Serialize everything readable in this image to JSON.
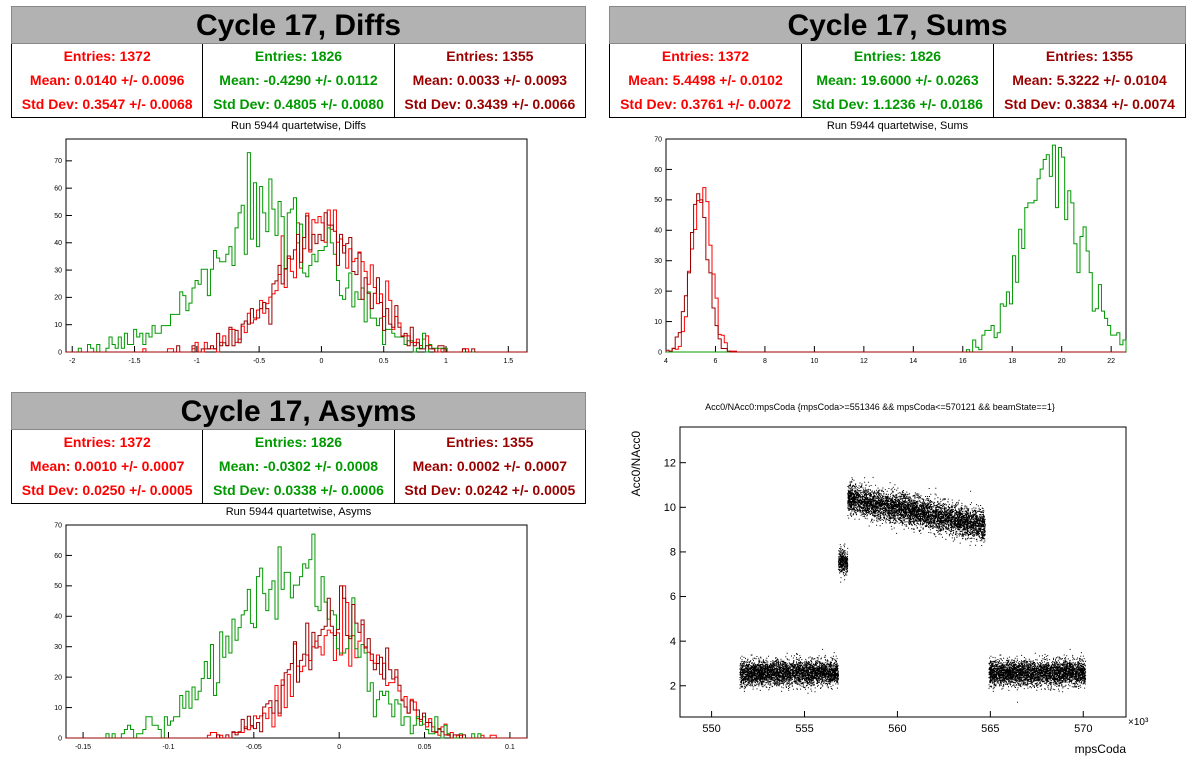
{
  "colors": {
    "red": "#ff0000",
    "green": "#009900",
    "darkred": "#990000",
    "title_bg": "#b2b2b2"
  },
  "panels": {
    "diffs": {
      "title": "Cycle 17, Diffs",
      "subtitle": "Run 5944 quartetwise, Diffs",
      "stats": [
        {
          "entries": "Entries: 1372",
          "mean": "Mean: 0.0140 +/- 0.0096",
          "std": "Std Dev: 0.3547 +/- 0.0068"
        },
        {
          "entries": "Entries: 1826",
          "mean": "Mean: -0.4290 +/- 0.0112",
          "std": "Std Dev: 0.4805 +/- 0.0080"
        },
        {
          "entries": "Entries: 1355",
          "mean": "Mean: 0.0033 +/- 0.0093",
          "std": "Std Dev: 0.3439 +/- 0.0066"
        }
      ]
    },
    "sums": {
      "title": "Cycle 17, Sums",
      "subtitle": "Run 5944 quartetwise, Sums",
      "stats": [
        {
          "entries": "Entries: 1372",
          "mean": "Mean: 5.4498 +/- 0.0102",
          "std": "Std Dev: 0.3761 +/- 0.0072"
        },
        {
          "entries": "Entries: 1826",
          "mean": "Mean: 19.6000 +/- 0.0263",
          "std": "Std Dev: 1.1236 +/- 0.0186"
        },
        {
          "entries": "Entries: 1355",
          "mean": "Mean: 5.3222 +/- 0.0104",
          "std": "Std Dev: 0.3834 +/- 0.0074"
        }
      ]
    },
    "asyms": {
      "title": "Cycle 17, Asyms",
      "subtitle": "Run 5944 quartetwise, Asyms",
      "stats": [
        {
          "entries": "Entries: 1372",
          "mean": "Mean: 0.0010 +/- 0.0007",
          "std": "Std Dev: 0.0250 +/- 0.0005"
        },
        {
          "entries": "Entries: 1826",
          "mean": "Mean: -0.0302 +/- 0.0008",
          "std": "Std Dev: 0.0338 +/- 0.0006"
        },
        {
          "entries": "Entries: 1355",
          "mean": "Mean: 0.0002 +/- 0.0007",
          "std": "Std Dev: 0.0242 +/- 0.0005"
        }
      ]
    },
    "scatter": {
      "title": "Acc0/NAcc0:mpsCoda {mpsCoda>=551346 && mpsCoda<=570121 && beamState==1}"
    }
  },
  "chart_data": [
    {
      "type": "histogram",
      "xlim": [
        -2.05,
        1.65
      ],
      "ylim": [
        0,
        78
      ],
      "xticks": [
        -2,
        -1.5,
        -1,
        -0.5,
        0,
        0.5,
        1,
        1.5
      ],
      "yticks": [
        0,
        10,
        20,
        30,
        40,
        50,
        60,
        70
      ],
      "series": [
        {
          "color": "#ff0000",
          "mean": 0.014,
          "std": 0.3547,
          "entries": 1372,
          "peak": 52
        },
        {
          "color": "#009900",
          "mean": -0.429,
          "std": 0.4805,
          "entries": 1826,
          "peak": 73
        },
        {
          "color": "#990000",
          "mean": 0.0033,
          "std": 0.3439,
          "entries": 1355,
          "peak": 51
        }
      ]
    },
    {
      "type": "histogram",
      "xlim": [
        4,
        22.6
      ],
      "ylim": [
        0,
        70
      ],
      "xticks": [
        4,
        6,
        8,
        10,
        12,
        14,
        16,
        18,
        20,
        22
      ],
      "yticks": [
        0,
        10,
        20,
        30,
        40,
        50,
        60,
        70
      ],
      "series": [
        {
          "color": "#ff0000",
          "mean": 5.4498,
          "std": 0.3761,
          "entries": 1372,
          "peak": 54
        },
        {
          "color": "#009900",
          "mean": 19.6,
          "std": 1.1236,
          "entries": 1826,
          "peak": 68
        },
        {
          "color": "#990000",
          "mean": 5.3222,
          "std": 0.3834,
          "entries": 1355,
          "peak": 52
        }
      ]
    },
    {
      "type": "histogram",
      "xlim": [
        -0.16,
        0.11
      ],
      "ylim": [
        0,
        70
      ],
      "xticks": [
        -0.15,
        -0.1,
        -0.05,
        0,
        0.05,
        0.1
      ],
      "yticks": [
        0,
        10,
        20,
        30,
        40,
        50,
        60,
        70
      ],
      "series": [
        {
          "color": "#ff0000",
          "mean": 0.001,
          "std": 0.025,
          "entries": 1372,
          "peak": 50
        },
        {
          "color": "#009900",
          "mean": -0.0302,
          "std": 0.0338,
          "entries": 1826,
          "peak": 67
        },
        {
          "color": "#990000",
          "mean": 0.0002,
          "std": 0.0242,
          "entries": 1355,
          "peak": 50
        }
      ]
    },
    {
      "type": "scatter",
      "xlabel": "mpsCoda",
      "ylabel": "Acc0/NAcc0",
      "x_exponent": "×10³",
      "xlim": [
        548.3,
        572.3
      ],
      "ylim": [
        0.6,
        13.6
      ],
      "xticks": [
        550,
        555,
        560,
        565,
        570
      ],
      "yticks": [
        2,
        4,
        6,
        8,
        10,
        12
      ],
      "clusters": [
        {
          "x": [
            551.5,
            556.8
          ],
          "y": 2.6,
          "spread": 0.5
        },
        {
          "x": [
            556.8,
            557.3
          ],
          "y": 7.6,
          "spread": 0.5
        },
        {
          "x": [
            557.3,
            564.7
          ],
          "y": [
            10.4,
            9.2
          ],
          "spread": 0.6
        },
        {
          "x": [
            564.9,
            570.1
          ],
          "y": 2.6,
          "spread": 0.5
        }
      ]
    }
  ]
}
